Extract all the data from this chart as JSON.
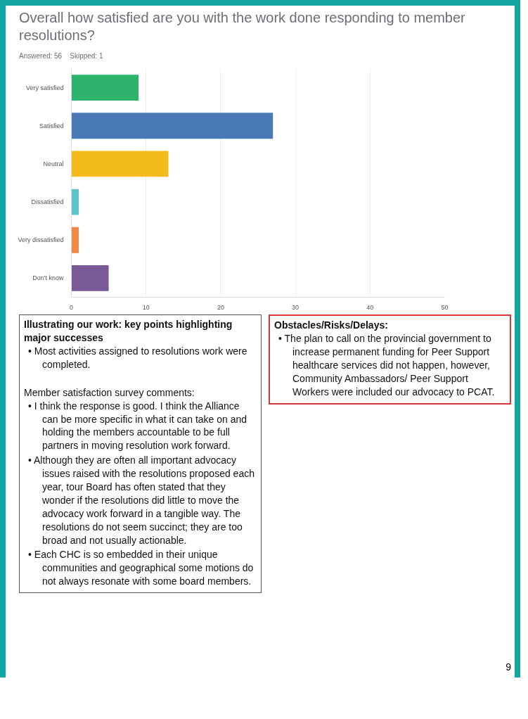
{
  "chart_data": {
    "type": "bar",
    "orientation": "horizontal",
    "title": "Overall how satisfied are you with the work done responding to member resolutions?",
    "subtitle": "Answered: 56    Skipped: 1",
    "categories": [
      "Very satisfied",
      "Satisfied",
      "Neutral",
      "Dissatisfied",
      "Very dissatisfied",
      "Don't know"
    ],
    "values": [
      9,
      27,
      13,
      1,
      1,
      5
    ],
    "colors": [
      "#2db36b",
      "#4a7ab5",
      "#f3bb1c",
      "#5bc4c9",
      "#f08a4b",
      "#7a5a96"
    ],
    "xlim": [
      0,
      50
    ],
    "xticks": [
      0,
      10,
      20,
      30,
      40,
      50
    ],
    "grid": "x",
    "annotations": [
      "Illustrating our work: key points highlighting major successes",
      "• Most activities assigned to resolutions work were completed.",
      "Member satisfaction survey comments:",
      "• I think the response is good.  I think the Alliance can be more specific in what it can take on and holding the members accountable to be full partners in moving resolution work forward.",
      "• Although they are often all important advocacy issues raised with the resolutions proposed each year, tour Board has often stated that they wonder if the resolutions did little to move the advocacy work forward in a tangible way.  The resolutions do not seem succinct; they are too broad and not usually actionable.",
      "• Each CHC is so embedded in their unique communities and geographical some motions do not always resonate with some board members.",
      "Obstacles/Risks/Delays:",
      "• The plan to call on the provincial government to increase permanent funding for Peer Support healthcare services did not happen, however, Community Ambassadors/ Peer Support Workers were included our advocacy to PCAT.",
      "9"
    ]
  }
}
